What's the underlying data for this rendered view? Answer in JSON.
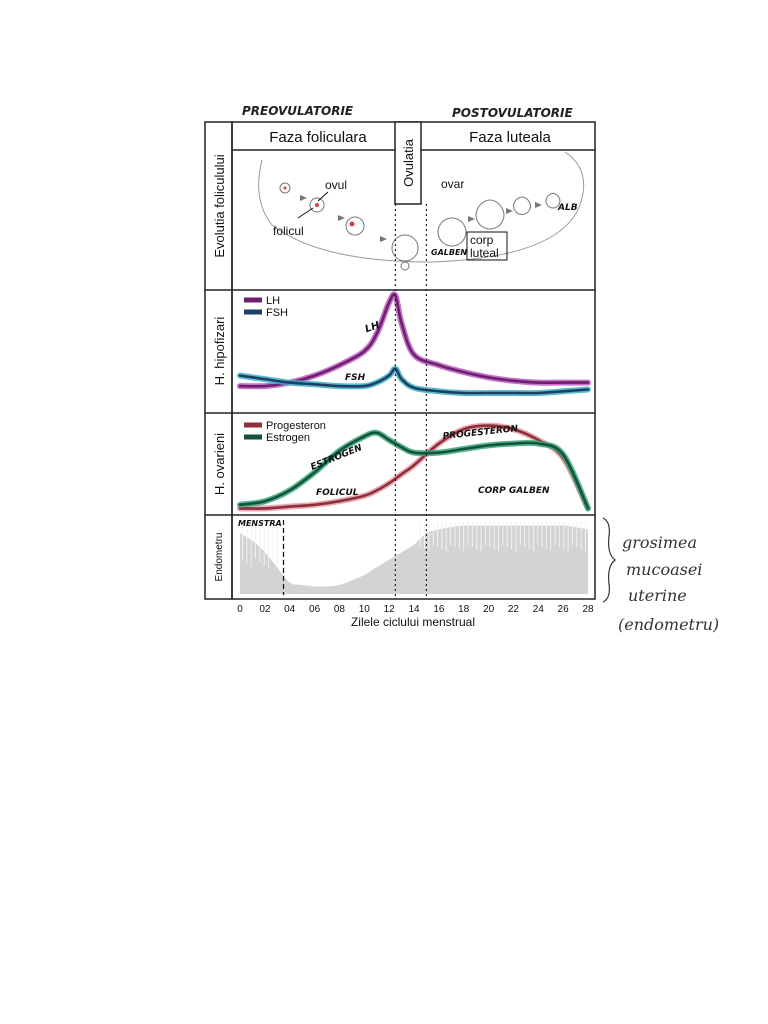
{
  "header": {
    "preovulatory": "PREOVULATORIE",
    "postovulatory": "POSTOVULATORIE"
  },
  "phases": {
    "follicular": "Faza foliculara",
    "ovulation": "Ovulatia",
    "luteal": "Faza luteala"
  },
  "row_labels": {
    "follicle": "Evolutia foliculului",
    "pituitary": "H. hipofizari",
    "ovarian": "H. ovarieni",
    "endometrium": "Endometru"
  },
  "follicle_panel": {
    "ovum": "ovul",
    "follicle": "folicul",
    "ovary": "ovar",
    "yellow": "GALBEN",
    "corpus_luteum_1": "corp",
    "corpus_luteum_2": "luteal",
    "white": "ALB"
  },
  "annotations": {
    "lh": "LH",
    "fsh": "FSH",
    "estrogen": "ESTROGEN",
    "progesterone": "PROGESTERON",
    "follicle": "FOLICUL",
    "corpus_luteum": "CORP GALBEN",
    "menstruation": "MENSTRA"
  },
  "side_note": [
    "grosimea",
    "mucoasei",
    "uterine",
    "(endometru)"
  ],
  "colors": {
    "lh": "#6e1f6e",
    "lh_highlight": "#b85cbf",
    "fsh": "#1c3f66",
    "fsh_highlight": "#3fb0c6",
    "progesterone": "#8e2e3a",
    "progesterone_highlight": "#e49aa6",
    "estrogen": "#14523a",
    "estrogen_highlight": "#39a87a",
    "endometrium_fill": "#d3d3d3"
  },
  "chart_data": [
    {
      "type": "line",
      "name": "pituitary",
      "x": [
        0,
        2,
        4,
        6,
        8,
        10,
        11,
        12,
        12.5,
        13,
        14,
        16,
        18,
        20,
        22,
        24,
        26,
        28
      ],
      "series": [
        {
          "name": "LH",
          "values": [
            4,
            4,
            5,
            7,
            10,
            14,
            19,
            28,
            30,
            22,
            13,
            10,
            8,
            6.5,
            5.5,
            5,
            5,
            5
          ]
        },
        {
          "name": "FSH",
          "values": [
            7,
            6,
            5,
            4.5,
            4,
            4,
            5,
            7,
            9,
            6,
            3.5,
            2.5,
            2,
            2,
            2,
            2,
            2.5,
            3
          ]
        }
      ]
    },
    {
      "type": "line",
      "name": "ovarian",
      "x": [
        0,
        2,
        4,
        6,
        8,
        10,
        11,
        12,
        13,
        14,
        16,
        18,
        20,
        22,
        24,
        26,
        28
      ],
      "series": [
        {
          "name": "Progesteron",
          "values": [
            1,
            1,
            1.5,
            2,
            3,
            4.5,
            6,
            8,
            10.5,
            13,
            19,
            23,
            24,
            23,
            20,
            15,
            1
          ]
        },
        {
          "name": "Estrogen",
          "values": [
            2,
            3,
            6,
            11,
            17,
            21,
            22,
            20,
            18,
            16.5,
            16.5,
            17.5,
            18.5,
            19,
            19,
            16,
            1
          ]
        }
      ]
    },
    {
      "type": "area",
      "name": "endometrium",
      "x": [
        0,
        1,
        2,
        3,
        4,
        5,
        6,
        7,
        8,
        9,
        10,
        11,
        12,
        13,
        14,
        15,
        16,
        17,
        18,
        19,
        20,
        21,
        22,
        23,
        24,
        25,
        26,
        27,
        28
      ],
      "values": [
        0.8,
        0.7,
        0.55,
        0.35,
        0.15,
        0.12,
        0.1,
        0.1,
        0.12,
        0.18,
        0.25,
        0.35,
        0.45,
        0.55,
        0.65,
        0.8,
        0.85,
        0.88,
        0.9,
        0.9,
        0.9,
        0.9,
        0.9,
        0.9,
        0.9,
        0.9,
        0.9,
        0.88,
        0.85
      ],
      "menstruation_end_day": 3.5
    }
  ],
  "x_axis": {
    "ticks": [
      "0",
      "02",
      "04",
      "06",
      "08",
      "10",
      "12",
      "14",
      "16",
      "18",
      "20",
      "22",
      "24",
      "26",
      "28"
    ],
    "label": "Zilele ciclului menstrual",
    "range": [
      0,
      28
    ],
    "ovulation_days": [
      12.5,
      15
    ]
  }
}
